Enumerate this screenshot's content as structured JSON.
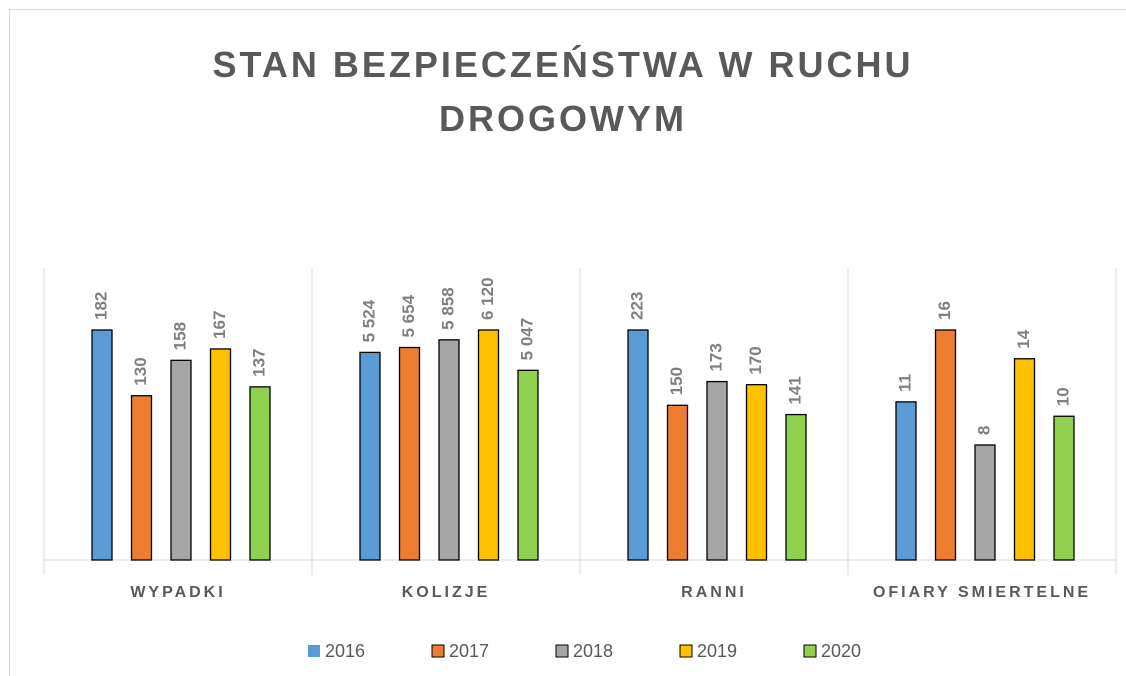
{
  "chart_data": {
    "type": "bar",
    "title": "STAN BEZPIECZEŃSTWA W RUCHU DROGOWYM",
    "categories": [
      "WYPADKI",
      "KOLIZJE",
      "RANNI",
      "OFIARY SMIERTELNE"
    ],
    "series": [
      {
        "name": "2016",
        "color": "#5b9bd5",
        "values": [
          182,
          5524,
          223,
          11
        ],
        "value_labels": [
          "182",
          "5 524",
          "223",
          "11"
        ]
      },
      {
        "name": "2017",
        "color": "#ed7d31",
        "values": [
          130,
          5654,
          150,
          16
        ],
        "value_labels": [
          "130",
          "5 654",
          "150",
          "16"
        ]
      },
      {
        "name": "2018",
        "color": "#a5a5a5",
        "values": [
          158,
          5858,
          173,
          8
        ],
        "value_labels": [
          "158",
          "5 858",
          "173",
          "8"
        ]
      },
      {
        "name": "2019",
        "color": "#ffc000",
        "values": [
          167,
          6120,
          170,
          14
        ],
        "value_labels": [
          "167",
          "6 120",
          "170",
          "14"
        ]
      },
      {
        "name": "2020",
        "color": "#92d050",
        "values": [
          137,
          5047,
          141,
          10
        ],
        "value_labels": [
          "137",
          "5 047",
          "141",
          "10"
        ]
      }
    ]
  }
}
